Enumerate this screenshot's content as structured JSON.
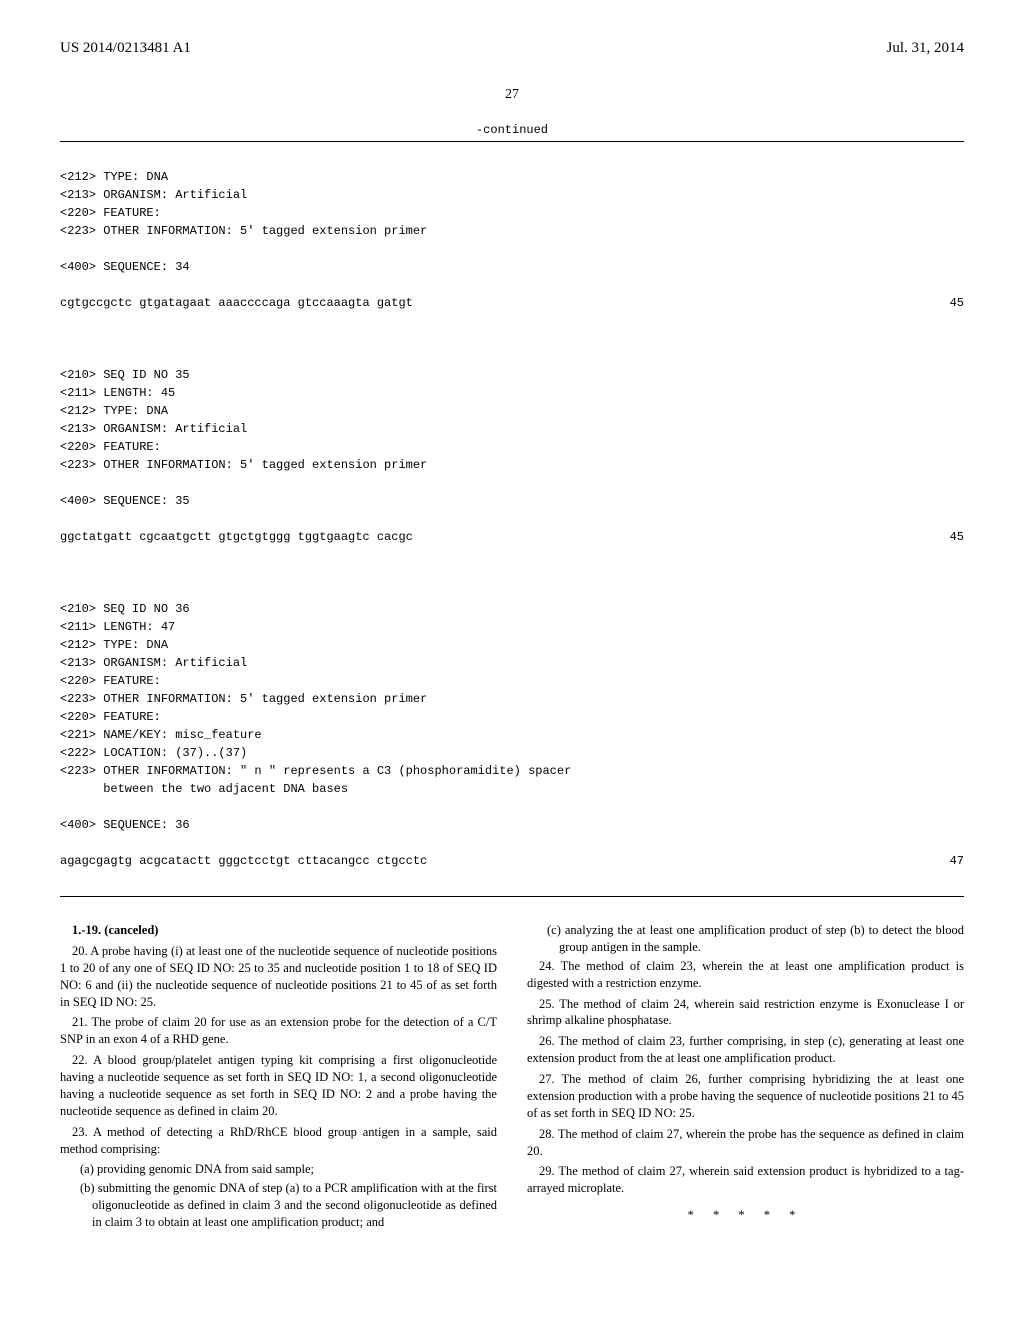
{
  "header": {
    "pub": "US 2014/0213481 A1",
    "date": "Jul. 31, 2014"
  },
  "page_num": "27",
  "continued": "-continued",
  "seq": {
    "s34": {
      "lines": [
        "<212> TYPE: DNA",
        "<213> ORGANISM: Artificial",
        "<220> FEATURE:",
        "<223> OTHER INFORMATION: 5' tagged extension primer",
        "",
        "<400> SEQUENCE: 34"
      ],
      "seq_line": "cgtgccgctc gtgatagaat aaaccccaga gtccaaagta gatgt",
      "len": "45"
    },
    "s35": {
      "lines": [
        "<210> SEQ ID NO 35",
        "<211> LENGTH: 45",
        "<212> TYPE: DNA",
        "<213> ORGANISM: Artificial",
        "<220> FEATURE:",
        "<223> OTHER INFORMATION: 5' tagged extension primer",
        "",
        "<400> SEQUENCE: 35"
      ],
      "seq_line": "ggctatgatt cgcaatgctt gtgctgtggg tggtgaagtc cacgc",
      "len": "45"
    },
    "s36": {
      "lines": [
        "<210> SEQ ID NO 36",
        "<211> LENGTH: 47",
        "<212> TYPE: DNA",
        "<213> ORGANISM: Artificial",
        "<220> FEATURE:",
        "<223> OTHER INFORMATION: 5' tagged extension primer",
        "<220> FEATURE:",
        "<221> NAME/KEY: misc_feature",
        "<222> LOCATION: (37)..(37)",
        "<223> OTHER INFORMATION: \" n \" represents a C3 (phosphoramidite) spacer",
        "      between the two adjacent DNA bases",
        "",
        "<400> SEQUENCE: 36"
      ],
      "seq_line": "agagcgagtg acgcatactt gggctcctgt cttacangcc ctgcctc",
      "len": "47"
    }
  },
  "claims": {
    "c1": "1.-19. (canceled)",
    "c20": "20. A probe having (i) at least one of the nucleotide sequence of nucleotide positions 1 to 20 of any one of SEQ ID NO: 25 to 35 and nucleotide position 1 to 18 of SEQ ID NO: 6 and (ii) the nucleotide sequence of nucleotide positions 21 to 45 of as set forth in SEQ ID NO: 25.",
    "c21": "21. The probe of claim 20 for use as an extension probe for the detection of a C/T SNP in an exon 4 of a RHD gene.",
    "c22": "22. A blood group/platelet antigen typing kit comprising a first oligonucleotide having a nucleotide sequence as set forth in SEQ ID NO: 1, a second oligonucleotide having a nucleotide sequence as set forth in SEQ ID NO: 2 and a probe having the nucleotide sequence as defined in claim 20.",
    "c23": "23. A method of detecting a RhD/RhCE blood group antigen in a sample, said method comprising:",
    "c23a": "(a) providing genomic DNA from said sample;",
    "c23b": "(b) submitting the genomic DNA of step (a) to a PCR amplification with at the first oligonucleotide as defined in claim 3 and the second oligonucleotide as defined in claim 3 to obtain at least one amplification product; and",
    "c23c": "(c) analyzing the at least one amplification product of step (b) to detect the blood group antigen in the sample.",
    "c24": "24. The method of claim 23, wherein the at least one amplification product is digested with a restriction enzyme.",
    "c25": "25. The method of claim 24, wherein said restriction enzyme is Exonuclease I or shrimp alkaline phosphatase.",
    "c26": "26. The method of claim 23, further comprising, in step (c), generating at least one extension product from the at least one amplification product.",
    "c27": "27. The method of claim 26, further comprising hybridizing the at least one extension production with a probe having the sequence of nucleotide positions 21 to 45 of as set forth in SEQ ID NO: 25.",
    "c28": "28. The method of claim 27, wherein the probe has the sequence as defined in claim 20.",
    "c29": "29. The method of claim 27, wherein said extension product is hybridized to a tag-arrayed microplate.",
    "stars": "* * * * *"
  }
}
